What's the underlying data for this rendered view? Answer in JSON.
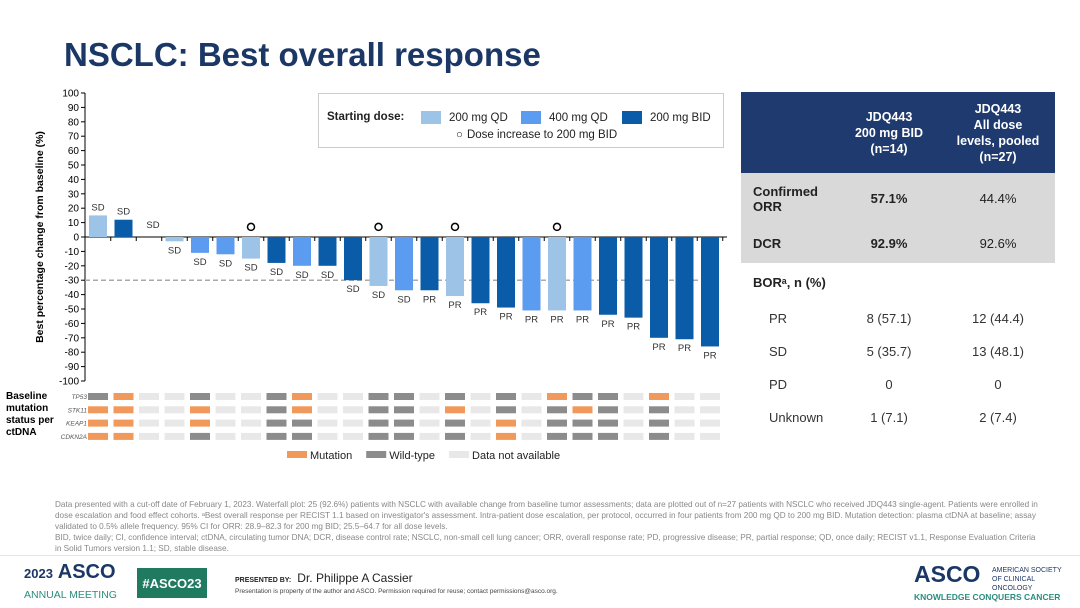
{
  "title": "NSCLC: Best overall response",
  "colors": {
    "200 mg QD": "#9dc3e6",
    "400 mg QD": "#5b9bf0",
    "200 mg BID": "#0a5ca8",
    "mutation": "#f0995a",
    "wild_type": "#8c8c8c",
    "not_available": "#e8e8e8",
    "title": "#1b3766",
    "table_header": "#1f3a6e"
  },
  "chart_data": {
    "type": "bar",
    "ylabel": "Best percentage change from baseline (%)",
    "ylim": [
      -100,
      100
    ],
    "yticks": [
      100,
      90,
      80,
      70,
      60,
      50,
      40,
      30,
      20,
      10,
      0,
      -10,
      -20,
      -30,
      -40,
      -50,
      -60,
      -70,
      -80,
      -90,
      -100
    ],
    "reference_line": -30,
    "legend": {
      "title": "Starting dose:",
      "entries": [
        "200 mg QD",
        "400 mg QD",
        "200 mg BID"
      ],
      "marker_note": "Dose increase to 200 mg BID"
    },
    "bars": [
      {
        "value": 15,
        "dose": "200 mg QD",
        "label": "SD",
        "dose_increase": false
      },
      {
        "value": 12,
        "dose": "200 mg BID",
        "label": "SD",
        "dose_increase": false
      },
      {
        "value": 0,
        "dose": "200 mg BID",
        "label": "SD",
        "dose_increase": false
      },
      {
        "value": -3,
        "dose": "200 mg QD",
        "label": "SD",
        "dose_increase": false
      },
      {
        "value": -11,
        "dose": "400 mg QD",
        "label": "SD",
        "dose_increase": false
      },
      {
        "value": -12,
        "dose": "400 mg QD",
        "label": "SD",
        "dose_increase": false
      },
      {
        "value": -15,
        "dose": "200 mg QD",
        "label": "SD",
        "dose_increase": true
      },
      {
        "value": -18,
        "dose": "200 mg BID",
        "label": "SD",
        "dose_increase": false
      },
      {
        "value": -20,
        "dose": "400 mg QD",
        "label": "SD",
        "dose_increase": false
      },
      {
        "value": -20,
        "dose": "200 mg BID",
        "label": "SD",
        "dose_increase": false
      },
      {
        "value": -30,
        "dose": "200 mg BID",
        "label": "SD",
        "dose_increase": false
      },
      {
        "value": -34,
        "dose": "200 mg QD",
        "label": "SD",
        "dose_increase": true
      },
      {
        "value": -37,
        "dose": "400 mg QD",
        "label": "SD",
        "dose_increase": false
      },
      {
        "value": -37,
        "dose": "200 mg BID",
        "label": "PR",
        "dose_increase": false
      },
      {
        "value": -41,
        "dose": "200 mg QD",
        "label": "PR",
        "dose_increase": true
      },
      {
        "value": -46,
        "dose": "200 mg BID",
        "label": "PR",
        "dose_increase": false
      },
      {
        "value": -49,
        "dose": "200 mg BID",
        "label": "PR",
        "dose_increase": false
      },
      {
        "value": -51,
        "dose": "400 mg QD",
        "label": "PR",
        "dose_increase": false
      },
      {
        "value": -51,
        "dose": "200 mg QD",
        "label": "PR",
        "dose_increase": true
      },
      {
        "value": -51,
        "dose": "400 mg QD",
        "label": "PR",
        "dose_increase": false
      },
      {
        "value": -54,
        "dose": "200 mg BID",
        "label": "PR",
        "dose_increase": false
      },
      {
        "value": -56,
        "dose": "200 mg BID",
        "label": "PR",
        "dose_increase": false
      },
      {
        "value": -70,
        "dose": "200 mg BID",
        "label": "PR",
        "dose_increase": false
      },
      {
        "value": -71,
        "dose": "200 mg BID",
        "label": "PR",
        "dose_increase": false
      },
      {
        "value": -76,
        "dose": "200 mg BID",
        "label": "PR",
        "dose_increase": false
      }
    ],
    "mutation_grid": {
      "title": "Baseline mutation status per ctDNA",
      "legend": {
        "M": "Mutation",
        "W": "Wild-type",
        "N": "Data not available"
      },
      "rows": [
        {
          "gene": "TP53",
          "status": "WMNNWNNWMNNWWNWNWNMWWNMNN"
        },
        {
          "gene": "STK11",
          "status": "MMNNMNNWMNNWWNMNWNWMWNWNN"
        },
        {
          "gene": "KEAP1",
          "status": "MMNNMNNWWNNWWNWNMNWWWNWNN"
        },
        {
          "gene": "CDKN2A",
          "status": "MMNNWNNWWNNWWNWNMNWWWNWNN"
        }
      ]
    }
  },
  "table": {
    "headers": [
      "",
      "JDQ443\n200 mg BID\n(n=14)",
      "JDQ443\nAll dose\nlevels, pooled\n(n=27)"
    ],
    "rows": [
      {
        "label": "Confirmed ORR",
        "v1": "57.1%",
        "v2": "44.4%"
      },
      {
        "label": "DCR",
        "v1": "92.9%",
        "v2": "92.6%"
      }
    ],
    "bor_title": "BORᵃ, n (%)",
    "bor_rows": [
      {
        "label": "PR",
        "v1": "8 (57.1)",
        "v2": "12 (44.4)"
      },
      {
        "label": "SD",
        "v1": "5 (35.7)",
        "v2": "13 (48.1)"
      },
      {
        "label": "PD",
        "v1": "0",
        "v2": "0"
      },
      {
        "label": "Unknown",
        "v1": "1 (7.1)",
        "v2": "2 (7.4)"
      }
    ]
  },
  "footnote": [
    "Data presented with a cut-off date of February 1, 2023. Waterfall plot: 25 (92.6%) patients with NSCLC with available change from baseline tumor assessments; data are plotted out of n=27 patients with NSCLC who received JDQ443 single-agent. Patients were enrolled in dose escalation and food effect cohorts. ᵃBest overall response per RECIST 1.1 based on investigator's assessment. Intra-patient dose escalation, per protocol, occurred in four patients from 200 mg QD to 200 mg BID. Mutation detection: plasma ctDNA at baseline; assay validated to 0.5% allele frequency. 95% CI for ORR: 28.9–82.3 for 200 mg BID; 25.5–64.7 for all dose levels.",
    "BID, twice daily; CI, confidence interval; ctDNA, circulating tumor DNA; DCR, disease control rate; NSCLC, non-small cell lung cancer; ORR, overall response rate; PD, progressive disease; PR, partial response; QD, once daily; RECIST v1.1, Response Evaluation Criteria in Solid Tumors version 1.1; SD, stable disease."
  ],
  "footer": {
    "year": "2023",
    "asco": "ASCO",
    "meeting": "ANNUAL MEETING",
    "hashtag": "#ASCO23",
    "presented_by": "PRESENTED BY:",
    "presenter": "Dr. Philippe A Cassier",
    "property": "Presentation is property of the author and ASCO. Permission required for reuse; contact permissions@asco.org.",
    "society": "AMERICAN SOCIETY OF CLINICAL ONCOLOGY",
    "tagline": "KNOWLEDGE CONQUERS CANCER"
  }
}
